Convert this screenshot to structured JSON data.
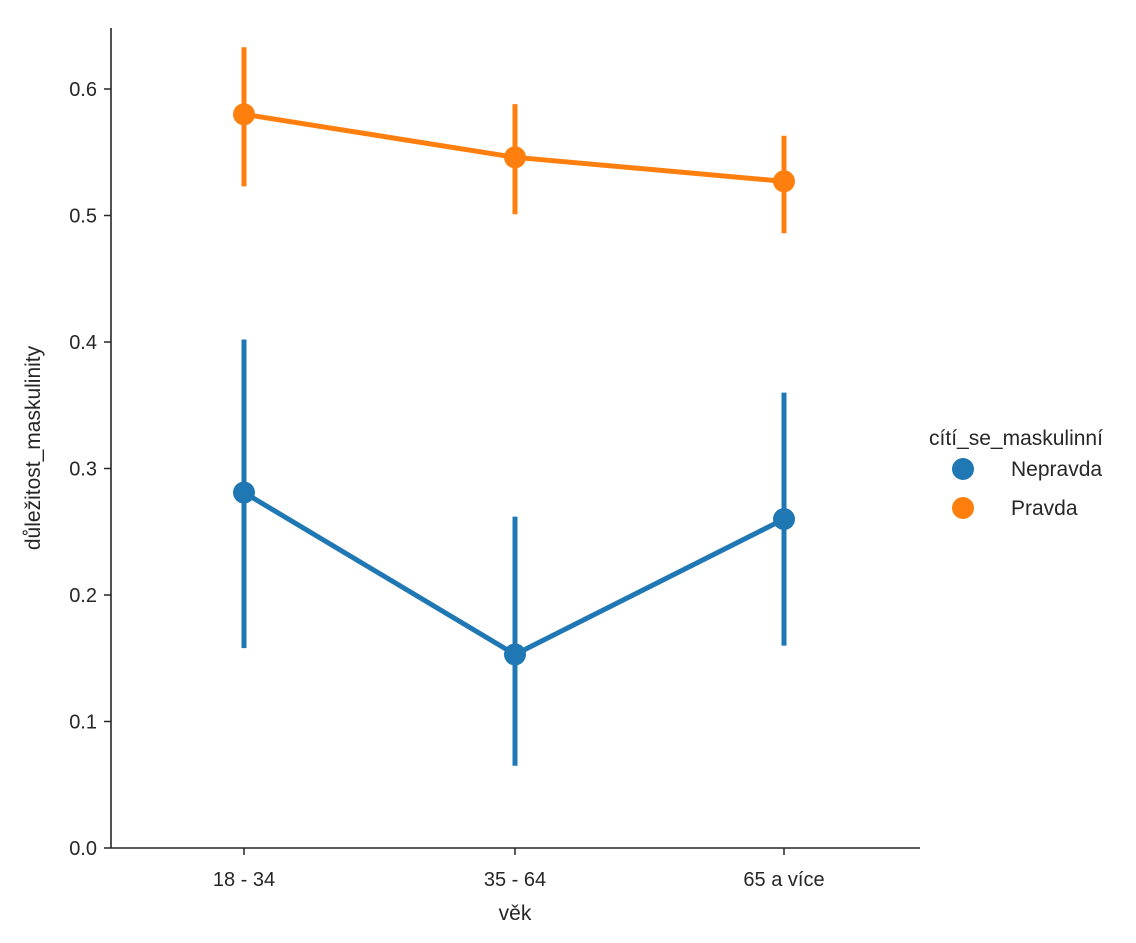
{
  "chart_data": {
    "type": "line",
    "xlabel": "věk",
    "ylabel": "důležitost_maskulinity",
    "categories": [
      "18 - 34",
      "35 - 64",
      "65 a více"
    ],
    "ylim": [
      0.0,
      0.65
    ],
    "yticks": [
      0.0,
      0.1,
      0.2,
      0.3,
      0.4,
      0.5,
      0.6
    ],
    "ytick_labels": [
      "0.0",
      "0.1",
      "0.2",
      "0.3",
      "0.4",
      "0.5",
      "0.6"
    ],
    "grid": false,
    "legend": {
      "title": "cítí_se_maskulinní",
      "placement": "right",
      "entries": [
        "Nepravda",
        "Pravda"
      ]
    },
    "series": [
      {
        "name": "Nepravda",
        "color": "#1f77b4",
        "values": [
          0.281,
          0.153,
          0.26
        ],
        "ci_low": [
          0.158,
          0.065,
          0.16
        ],
        "ci_high": [
          0.402,
          0.262,
          0.36
        ]
      },
      {
        "name": "Pravda",
        "color": "#ff7f0e",
        "values": [
          0.58,
          0.546,
          0.527
        ],
        "ci_low": [
          0.523,
          0.501,
          0.486
        ],
        "ci_high": [
          0.633,
          0.588,
          0.563
        ]
      }
    ]
  }
}
